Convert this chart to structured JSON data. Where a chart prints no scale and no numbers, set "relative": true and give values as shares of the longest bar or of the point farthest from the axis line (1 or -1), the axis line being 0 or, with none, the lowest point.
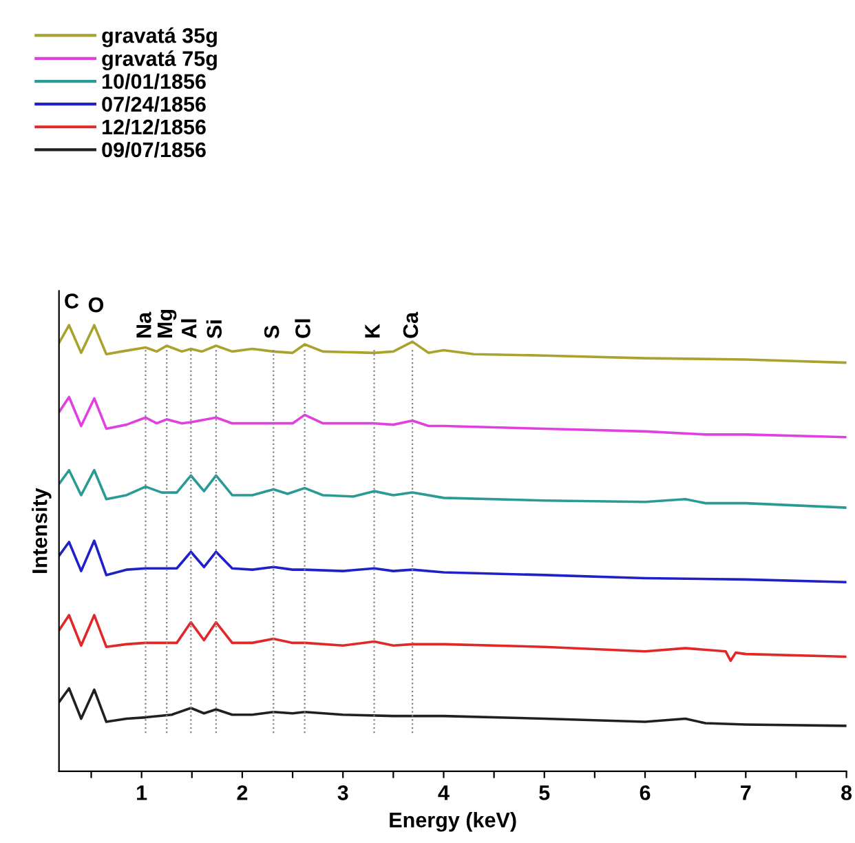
{
  "chart_data": {
    "type": "line",
    "relative": true,
    "xlabel": "Energy (keV)",
    "ylabel": "Intensity",
    "xlim": [
      0.18,
      8
    ],
    "xticks": [
      {
        "value": 0.5,
        "label": null
      },
      1,
      {
        "value": 1.5,
        "label": null
      },
      2,
      {
        "value": 2.5,
        "label": null
      },
      3,
      {
        "value": 3.5,
        "label": null
      },
      4,
      {
        "value": 4.5,
        "label": null
      },
      5,
      {
        "value": 5.5,
        "label": null
      },
      6,
      {
        "value": 6.5,
        "label": null
      },
      7,
      {
        "value": 7.5,
        "label": null
      },
      8
    ],
    "legend": "top left",
    "grid": false,
    "line_style": "solid",
    "marker": "none",
    "annotations": [
      "C",
      "O"
    ],
    "ref_lines": [
      {
        "axis": "x",
        "value": 1.04,
        "label": "Na",
        "color": "#808080",
        "line_style": "dotted"
      },
      {
        "axis": "x",
        "value": 1.25,
        "label": "Mg",
        "color": "#808080",
        "line_style": "dotted"
      },
      {
        "axis": "x",
        "value": 1.49,
        "label": "Al",
        "color": "#808080",
        "line_style": "dotted"
      },
      {
        "axis": "x",
        "value": 1.74,
        "label": "Si",
        "color": "#808080",
        "line_style": "dotted"
      },
      {
        "axis": "x",
        "value": 2.31,
        "label": "S",
        "color": "#808080",
        "line_style": "dotted"
      },
      {
        "axis": "x",
        "value": 2.62,
        "label": "Cl",
        "color": "#808080",
        "line_style": "dotted"
      },
      {
        "axis": "x",
        "value": 3.31,
        "label": "K",
        "color": "#808080",
        "line_style": "dotted"
      },
      {
        "axis": "x",
        "value": 3.69,
        "label": "Ca",
        "color": "#808080",
        "line_style": "dotted"
      }
    ],
    "series": [
      {
        "name": "gravatá 35g",
        "color": "#a9a22c",
        "x": [
          0.18,
          0.28,
          0.4,
          0.53,
          0.65,
          0.8,
          1.04,
          1.15,
          1.25,
          1.4,
          1.49,
          1.6,
          1.74,
          1.9,
          2.1,
          2.31,
          2.5,
          2.62,
          2.8,
          3.31,
          3.5,
          3.69,
          3.85,
          4,
          4.3,
          5,
          6,
          7,
          8
        ],
        "values": [
          0.96,
          1.0,
          0.938,
          1.0,
          0.935,
          0.941,
          0.95,
          0.941,
          0.954,
          0.941,
          0.947,
          0.941,
          0.954,
          0.941,
          0.947,
          0.941,
          0.938,
          0.957,
          0.941,
          0.938,
          0.941,
          0.963,
          0.938,
          0.944,
          0.935,
          0.932,
          0.926,
          0.923,
          0.916
        ]
      },
      {
        "name": "gravatá 75g",
        "color": "#e040e0",
        "x": [
          0.18,
          0.28,
          0.4,
          0.53,
          0.65,
          0.85,
          1.04,
          1.15,
          1.25,
          1.4,
          1.5,
          1.74,
          1.9,
          2.31,
          2.5,
          2.62,
          2.8,
          3.31,
          3.5,
          3.69,
          3.85,
          4,
          5,
          6,
          6.6,
          7,
          8
        ],
        "values": [
          0.805,
          0.839,
          0.774,
          0.836,
          0.768,
          0.777,
          0.793,
          0.78,
          0.789,
          0.78,
          0.783,
          0.793,
          0.78,
          0.78,
          0.78,
          0.799,
          0.78,
          0.78,
          0.777,
          0.786,
          0.774,
          0.774,
          0.768,
          0.762,
          0.755,
          0.755,
          0.749
        ]
      },
      {
        "name": "10/01/1856",
        "color": "#2a9a94",
        "x": [
          0.18,
          0.28,
          0.4,
          0.53,
          0.65,
          0.85,
          1.04,
          1.2,
          1.35,
          1.49,
          1.62,
          1.74,
          1.9,
          2.1,
          2.31,
          2.45,
          2.62,
          2.8,
          3.1,
          3.31,
          3.5,
          3.69,
          4,
          5,
          6,
          6.4,
          6.6,
          7,
          8
        ],
        "values": [
          0.644,
          0.675,
          0.619,
          0.675,
          0.61,
          0.619,
          0.638,
          0.625,
          0.625,
          0.663,
          0.628,
          0.663,
          0.619,
          0.619,
          0.632,
          0.622,
          0.635,
          0.619,
          0.616,
          0.628,
          0.619,
          0.625,
          0.613,
          0.607,
          0.604,
          0.61,
          0.601,
          0.601,
          0.591
        ]
      },
      {
        "name": "07/24/1856",
        "color": "#2020c8",
        "x": [
          0.18,
          0.28,
          0.4,
          0.53,
          0.65,
          0.85,
          1.04,
          1.35,
          1.49,
          1.62,
          1.74,
          1.9,
          2.1,
          2.31,
          2.5,
          2.62,
          3.0,
          3.31,
          3.5,
          3.69,
          4,
          5,
          6,
          7,
          8
        ],
        "values": [
          0.483,
          0.514,
          0.449,
          0.517,
          0.44,
          0.452,
          0.455,
          0.455,
          0.492,
          0.458,
          0.492,
          0.455,
          0.452,
          0.458,
          0.452,
          0.452,
          0.449,
          0.455,
          0.449,
          0.452,
          0.446,
          0.44,
          0.433,
          0.43,
          0.424
        ]
      },
      {
        "name": "12/12/1856",
        "color": "#e02828",
        "x": [
          0.18,
          0.28,
          0.4,
          0.53,
          0.65,
          0.85,
          1.04,
          1.35,
          1.49,
          1.62,
          1.74,
          1.9,
          2.1,
          2.31,
          2.5,
          2.62,
          3.0,
          3.31,
          3.5,
          3.69,
          4,
          5,
          6,
          6.4,
          6.8,
          6.85,
          6.9,
          7,
          8
        ],
        "values": [
          0.316,
          0.35,
          0.282,
          0.35,
          0.279,
          0.285,
          0.288,
          0.288,
          0.334,
          0.294,
          0.334,
          0.288,
          0.288,
          0.297,
          0.288,
          0.288,
          0.282,
          0.291,
          0.282,
          0.285,
          0.285,
          0.279,
          0.269,
          0.276,
          0.269,
          0.248,
          0.266,
          0.263,
          0.257
        ]
      },
      {
        "name": "09/07/1856",
        "color": "#202020",
        "x": [
          0.18,
          0.28,
          0.4,
          0.53,
          0.65,
          0.85,
          1.04,
          1.3,
          1.49,
          1.62,
          1.74,
          1.9,
          2.1,
          2.31,
          2.5,
          2.62,
          3.0,
          3.5,
          4,
          5,
          6,
          6.4,
          6.6,
          7,
          8
        ],
        "values": [
          0.155,
          0.186,
          0.118,
          0.183,
          0.111,
          0.118,
          0.121,
          0.127,
          0.142,
          0.13,
          0.139,
          0.127,
          0.127,
          0.133,
          0.13,
          0.133,
          0.127,
          0.124,
          0.124,
          0.118,
          0.111,
          0.118,
          0.108,
          0.105,
          0.102
        ]
      }
    ]
  }
}
